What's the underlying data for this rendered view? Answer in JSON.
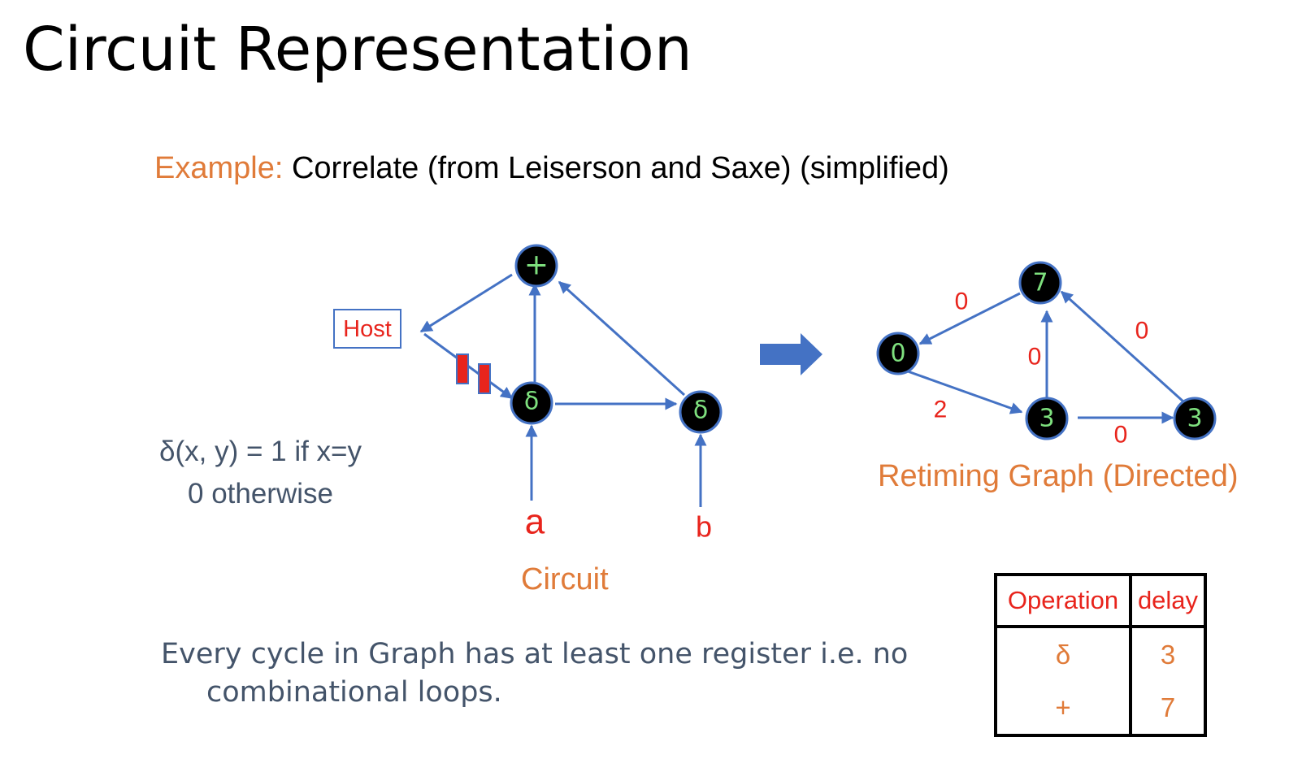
{
  "title": "Circuit Representation",
  "example": {
    "label": "Example:",
    "text": "Correlate (from Leiserson and Saxe) (simplified)"
  },
  "delta_definition": {
    "line1": "δ(x, y) = 1 if x=y",
    "line2": "0 otherwise"
  },
  "circuit": {
    "host_label": "Host",
    "nodes": {
      "plus": "+",
      "delta1": "δ",
      "delta2": "δ"
    },
    "inputs": {
      "a": "a",
      "b": "b"
    },
    "caption": "Circuit"
  },
  "retiming_graph": {
    "nodes": {
      "host": "0",
      "plus": "7",
      "delta1": "3",
      "delta2": "3"
    },
    "weights": {
      "plus_to_host": "0",
      "host_to_delta1": "2",
      "delta1_to_plus": "0",
      "delta2_to_plus": "0",
      "delta1_to_delta2": "0"
    },
    "caption": "Retiming Graph (Directed)"
  },
  "cycle_note": {
    "line1": "Every cycle in Graph has at least one register i.e. no",
    "line2": "combinational loops."
  },
  "op_table": {
    "headers": [
      "Operation",
      "delay"
    ],
    "rows": [
      [
        "δ",
        "3"
      ],
      [
        "+",
        "7"
      ]
    ]
  },
  "colors": {
    "accent_orange": "#e07b39",
    "edge_blue": "#4472c4",
    "label_red": "#e8241c",
    "node_label_green": "#7ee07e"
  }
}
